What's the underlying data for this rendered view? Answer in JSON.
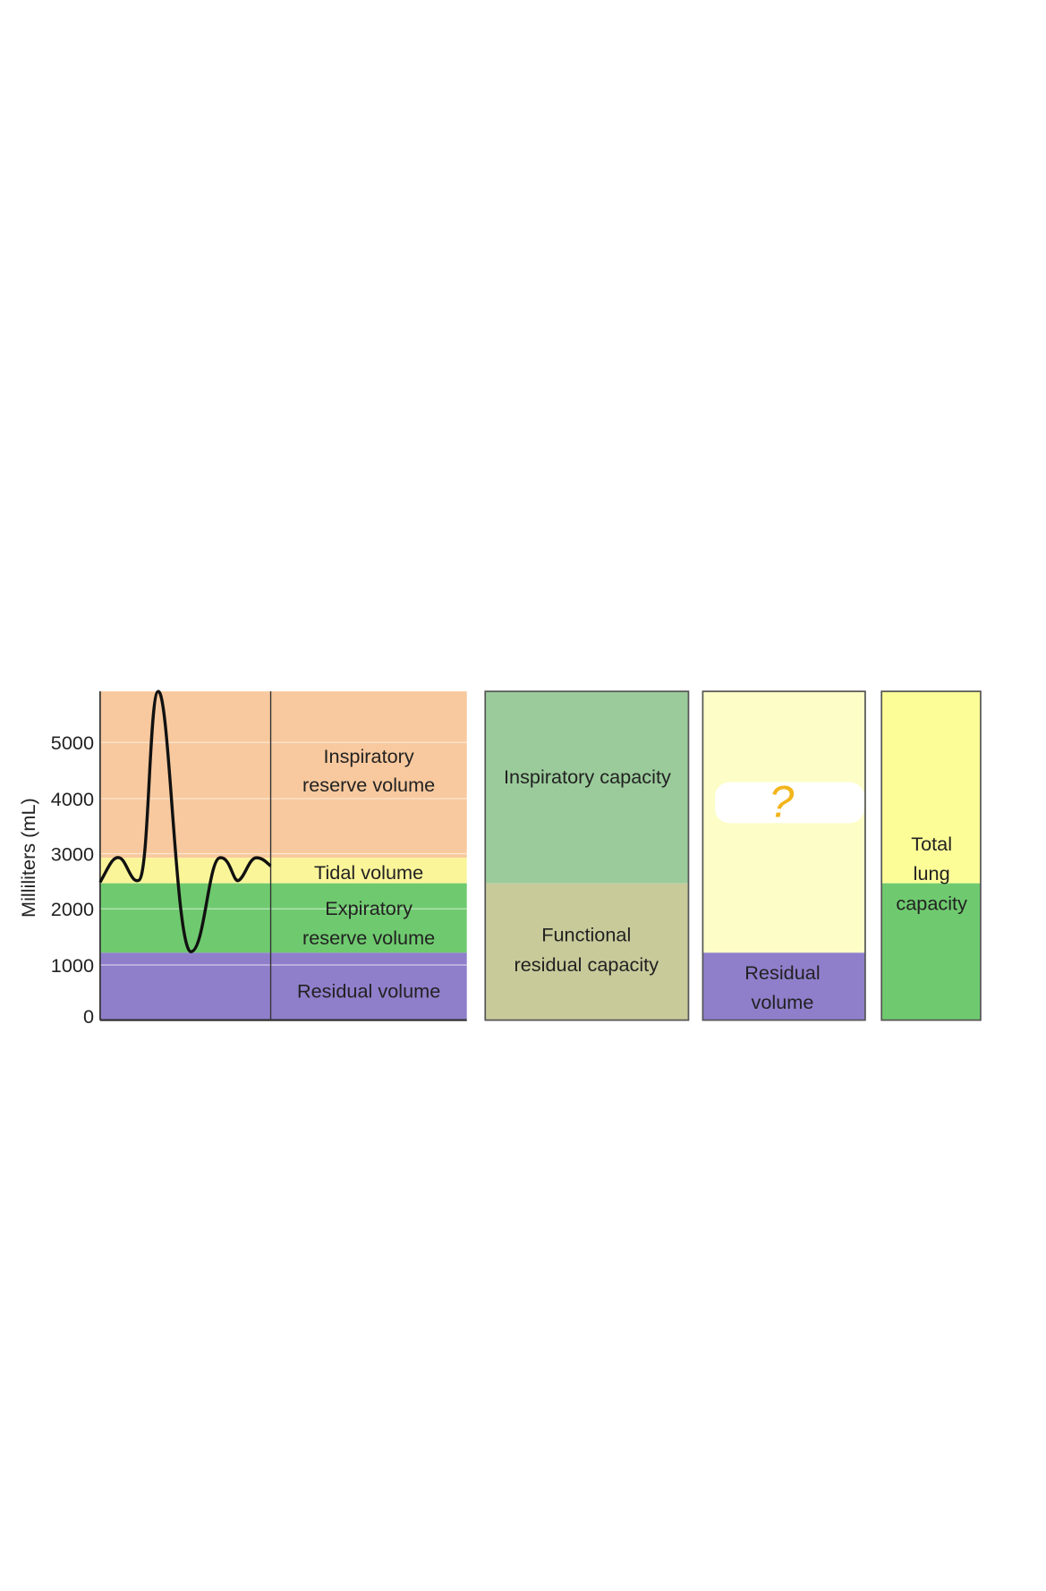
{
  "axis": {
    "label": "Milliliters (mL)",
    "ticks": [
      "0",
      "1000",
      "2000",
      "3000",
      "4000",
      "5000"
    ]
  },
  "volumes": {
    "inspiratory_reserve": "Inspiratory reserve volume",
    "tidal": "Tidal volume",
    "expiratory_reserve": "Expiratory reserve volume",
    "residual": "Residual volume"
  },
  "capacities": {
    "inspiratory": "Inspiratory capacity",
    "functional_residual": "Functional residual capacity"
  },
  "vital": {
    "question": "?",
    "residual": "Residual volume"
  },
  "total": {
    "label": "Total lung capacity"
  }
}
